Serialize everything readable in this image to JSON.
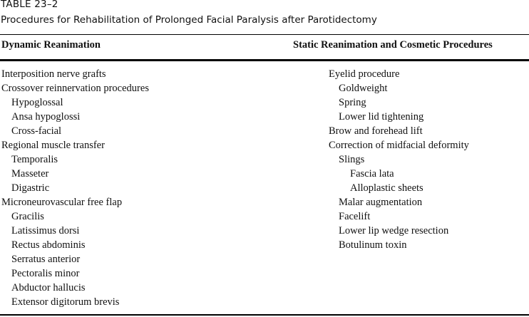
{
  "table": {
    "label": "TABLE 23–2",
    "title": "Procedures for Rehabilitation of Prolonged Facial Paralysis after Parotidectomy",
    "headers": [
      "Dynamic Reanimation",
      "Static Reanimation and Cosmetic Procedures"
    ],
    "dynamic": [
      {
        "text": "Interposition nerve grafts",
        "level": 0
      },
      {
        "text": "Crossover reinnervation procedures",
        "level": 0
      },
      {
        "text": "Hypoglossal",
        "level": 1
      },
      {
        "text": "Ansa hypoglossi",
        "level": 1
      },
      {
        "text": "Cross-facial",
        "level": 1
      },
      {
        "text": "Regional muscle transfer",
        "level": 0
      },
      {
        "text": "Temporalis",
        "level": 1
      },
      {
        "text": "Masseter",
        "level": 1
      },
      {
        "text": "Digastric",
        "level": 1
      },
      {
        "text": "Microneurovascular free flap",
        "level": 0
      },
      {
        "text": "Gracilis",
        "level": 1
      },
      {
        "text": "Latissimus dorsi",
        "level": 1
      },
      {
        "text": "Rectus abdominis",
        "level": 1
      },
      {
        "text": "Serratus anterior",
        "level": 1
      },
      {
        "text": "Pectoralis minor",
        "level": 1
      },
      {
        "text": "Abductor hallucis",
        "level": 1
      },
      {
        "text": "Extensor digitorum brevis",
        "level": 1
      }
    ],
    "static": [
      {
        "text": "Eyelid procedure",
        "level": 0
      },
      {
        "text": "Goldweight",
        "level": 1
      },
      {
        "text": "Spring",
        "level": 1
      },
      {
        "text": "Lower lid tightening",
        "level": 1
      },
      {
        "text": "Brow and forehead lift",
        "level": 0
      },
      {
        "text": "Correction of midfacial deformity",
        "level": 0
      },
      {
        "text": "Slings",
        "level": 1
      },
      {
        "text": "Fascia lata",
        "level": 2
      },
      {
        "text": "Alloplastic sheets",
        "level": 2
      },
      {
        "text": "Malar augmentation",
        "level": 1
      },
      {
        "text": "Facelift",
        "level": 1
      },
      {
        "text": "Lower lip wedge resection",
        "level": 1
      },
      {
        "text": "Botulinum toxin",
        "level": 1
      }
    ]
  }
}
